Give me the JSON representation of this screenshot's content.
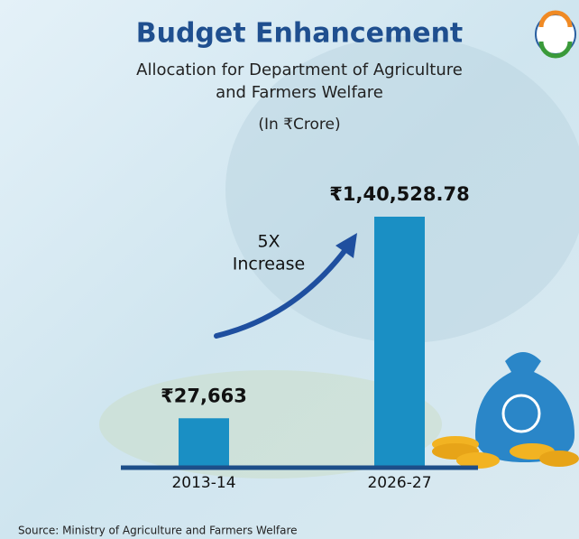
{
  "chart_data": {
    "type": "bar",
    "title": "Budget Enhancement",
    "subtitle": [
      "Allocation for Department of Agriculture",
      "and Farmers Welfare"
    ],
    "unit_note": "(In ₹Crore)",
    "annotation": [
      "5X",
      "Increase"
    ],
    "categories": [
      "2013-14",
      "2026-27"
    ],
    "values": [
      27663,
      140528.78
    ],
    "value_labels": [
      "₹27,663",
      "₹1,40,528.78"
    ],
    "color": "#1a8fc4",
    "source": "Source: Ministry of Agriculture and Farmers Welfare"
  }
}
